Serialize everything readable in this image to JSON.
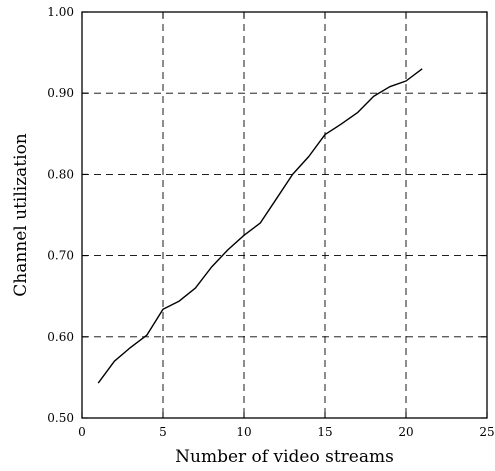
{
  "chart_data": {
    "type": "line",
    "title": "",
    "xlabel": "Number of video streams",
    "ylabel": "Channel utilization",
    "xlim": [
      0,
      25
    ],
    "ylim": [
      0.5,
      1.0
    ],
    "x_ticks": [
      0,
      5,
      10,
      15,
      20,
      25
    ],
    "y_ticks": [
      0.5,
      0.6,
      0.7,
      0.8,
      0.9,
      1.0
    ],
    "x_tick_labels": [
      "0",
      "5",
      "10",
      "15",
      "20",
      "25"
    ],
    "y_tick_labels": [
      "0.50",
      "0.60",
      "0.70",
      "0.80",
      "0.90",
      "1.00"
    ],
    "grid": true,
    "series": [
      {
        "x": [
          1,
          2,
          3,
          4,
          5,
          6,
          7,
          8,
          9,
          10,
          11,
          12,
          13,
          14,
          15,
          16,
          17,
          18,
          19,
          20,
          21
        ],
        "y": [
          0.543,
          0.57,
          0.587,
          0.602,
          0.634,
          0.644,
          0.66,
          0.686,
          0.707,
          0.725,
          0.74,
          0.77,
          0.8,
          0.822,
          0.849,
          0.862,
          0.876,
          0.896,
          0.908,
          0.915,
          0.93
        ]
      }
    ]
  }
}
